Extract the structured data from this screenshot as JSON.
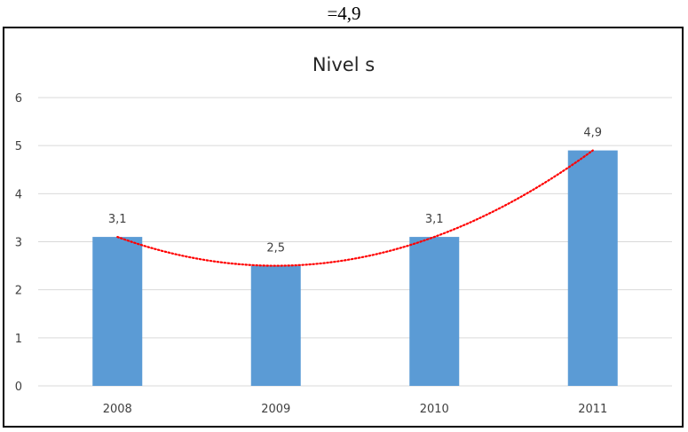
{
  "caption": "=4,9",
  "chart_data": {
    "type": "bar",
    "title": "Nivel s",
    "categories": [
      "2008",
      "2009",
      "2010",
      "2011"
    ],
    "values": [
      3.1,
      2.5,
      3.1,
      4.9
    ],
    "data_labels": [
      "3,1",
      "2,5",
      "3,1",
      "4,9"
    ],
    "y_ticks": [
      "0",
      "1",
      "2",
      "3",
      "4",
      "5",
      "6"
    ],
    "ylim": [
      0,
      6
    ],
    "xlabel": "",
    "ylabel": "",
    "grid": true,
    "legend": "none",
    "trendline": "polynomial",
    "colors": {
      "bar": "#5B9BD5",
      "trendline": "#FF0000",
      "grid": "#D9D9D9",
      "text": "#404040",
      "title": "#262626"
    }
  }
}
